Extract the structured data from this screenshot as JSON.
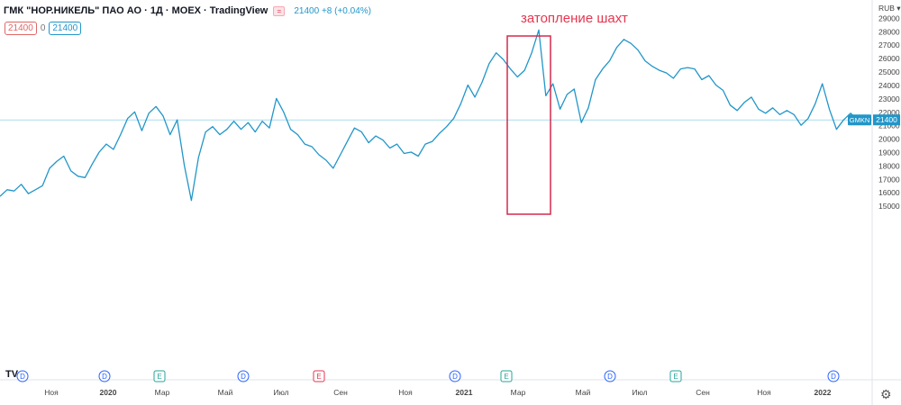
{
  "header": {
    "title": "ГМК \"НОР.НИКЕЛЬ\" ПАО АО · 1Д · MOEX · TradingView",
    "quote": "21400 +8 (+0.04%)",
    "pill_left": "21400",
    "pill_zero": "0",
    "pill_right": "21400"
  },
  "chart_data": {
    "type": "line",
    "title": "",
    "xlabel": "",
    "ylabel": "",
    "currency_label": "RUB",
    "x_ticks": [
      "Ноя",
      "2020",
      "Мар",
      "Май",
      "Июл",
      "Сен",
      "Ноя",
      "2021",
      "Мар",
      "Май",
      "Июл",
      "Сен",
      "Ноя",
      "2022"
    ],
    "y_ticks": [
      15000,
      16000,
      17000,
      18000,
      19000,
      20000,
      21000,
      22000,
      23000,
      24000,
      25000,
      26000,
      27000,
      28000,
      29000
    ],
    "ylim": [
      14400,
      29600
    ],
    "grid": false,
    "series": [
      {
        "values": [
          15700,
          16200,
          16100,
          16600,
          15900,
          16200,
          16500,
          17800,
          18300,
          18700,
          17600,
          17200,
          17100,
          18100,
          19000,
          19600,
          19200,
          20300,
          21500,
          22000,
          20600,
          21900,
          22400,
          21700,
          20300,
          21400,
          18000,
          15400,
          18600,
          20500,
          20900,
          20300,
          20700,
          21300,
          20700,
          21200,
          20500,
          21300,
          20800,
          23000,
          22000,
          20700,
          20300,
          19600,
          19400,
          18800,
          18400,
          17800,
          18800,
          19800,
          20800,
          20500,
          19700,
          20200,
          19900,
          19300,
          19600,
          18900,
          19000,
          18700,
          19600,
          19800,
          20400,
          20900,
          21500,
          22600,
          24000,
          23100,
          24200,
          25600,
          26400,
          25900,
          25200,
          24600,
          25100,
          26400,
          28100,
          23200,
          24100,
          22200,
          23300,
          23700,
          21200,
          22300,
          24400,
          25200,
          25800,
          26800,
          27400,
          27100,
          26600,
          25800,
          25400,
          25100,
          24900,
          24500,
          25200,
          25300,
          25200,
          24400,
          24700,
          24000,
          23600,
          22500,
          22100,
          22700,
          23100,
          22200,
          21900,
          22300,
          21800,
          22100,
          21800,
          21000,
          21500,
          22600,
          24100,
          22200,
          20700,
          21400,
          21900,
          21400
        ],
        "color": "#2196c9"
      }
    ],
    "last_price": {
      "ticker": "GMKN",
      "value": "21400"
    },
    "events": [
      "D",
      "D",
      "E",
      "D",
      "E",
      "D",
      "E",
      "D",
      "E",
      "D"
    ],
    "annotation": {
      "text": "затопление шахт",
      "color": "#e5364f"
    }
  }
}
